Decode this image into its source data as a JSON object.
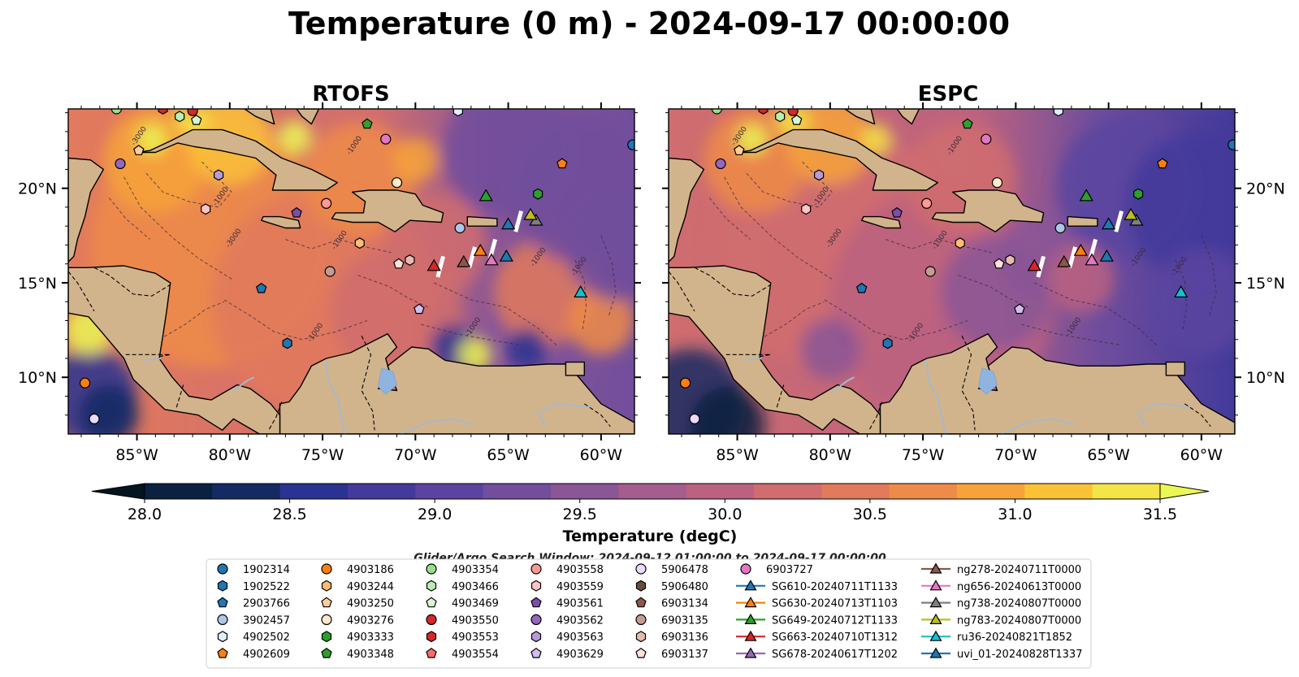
{
  "figure": {
    "title": "Temperature (0 m) - 2024-09-17 00:00:00",
    "search_window": "Glider/Argo Search Window: 2024-09-12 01:00:00 to 2024-09-17 00:00:00"
  },
  "colors": {
    "land": "#d2b48c",
    "border_line": "#000000",
    "river": "#a8b8c8",
    "lake": "#8fb4e0"
  },
  "chart_data": [
    {
      "type": "heatmap",
      "panel": "left",
      "title": "RTOFS",
      "x_ticks": [
        "85°W",
        "80°W",
        "75°W",
        "70°W",
        "65°W",
        "60°W"
      ],
      "x_tick_values": [
        -85,
        -80,
        -75,
        -70,
        -65,
        -60
      ],
      "y_ticks": [
        "20°N",
        "15°N",
        "10°N"
      ],
      "y_tick_values": [
        20,
        15,
        10
      ],
      "xlim": [
        -88.7,
        -58.2
      ],
      "ylim": [
        7.0,
        24.2
      ],
      "bathymetry_contour_labels": [
        "-1000",
        "-3000"
      ],
      "value_description": "Sea surface temperature (degC); ~30.0–31.0 in the western/central Caribbean and Gulf, ~29.0–29.5 east of 68°W"
    },
    {
      "type": "heatmap",
      "panel": "right",
      "title": "ESPC",
      "x_ticks": [
        "85°W",
        "80°W",
        "75°W",
        "70°W",
        "65°W",
        "60°W"
      ],
      "x_tick_values": [
        -85,
        -80,
        -75,
        -70,
        -65,
        -60
      ],
      "y_ticks": [
        "20°N",
        "15°N",
        "10°N"
      ],
      "y_tick_values": [
        20,
        15,
        10
      ],
      "xlim": [
        -88.7,
        -58.2
      ],
      "ylim": [
        7.0,
        24.2
      ],
      "bathymetry_contour_labels": [
        "-1000",
        "-3000"
      ],
      "value_description": "Sea surface temperature (degC); generally cooler than RTOFS, ~29.5–30.5 in central Caribbean, ~28.7–29.2 east of 65°W"
    }
  ],
  "colorbar": {
    "label": "Temperature (degC)",
    "min": 28.0,
    "max": 31.5,
    "ticks": [
      "28.0",
      "28.5",
      "29.0",
      "29.5",
      "30.0",
      "30.5",
      "31.0",
      "31.5"
    ],
    "colors": [
      "#0b2140",
      "#142a63",
      "#2a3391",
      "#433a9b",
      "#5b44a0",
      "#724e9c",
      "#8a5696",
      "#a45d8c",
      "#bb6280",
      "#d06d6f",
      "#e27a5c",
      "#ef8b48",
      "#f7a33b",
      "#fbc238",
      "#f3e447"
    ],
    "extend_low": "#05151f",
    "extend_high": "#ebf754"
  },
  "legend": {
    "columns": [
      [
        {
          "label": "1902314",
          "marker": "circle",
          "color": "#1f77b4"
        },
        {
          "label": "1902522",
          "marker": "hexagon",
          "color": "#1f77b4"
        },
        {
          "label": "2903766",
          "marker": "pentagon",
          "color": "#1f77b4"
        },
        {
          "label": "3902457",
          "marker": "circle",
          "color": "#aec7e8"
        },
        {
          "label": "4902502",
          "marker": "hexagon",
          "color": "#dff0fb"
        },
        {
          "label": "4902609",
          "marker": "pentagon",
          "color": "#ff7f0e"
        }
      ],
      [
        {
          "label": "4903186",
          "marker": "circle",
          "color": "#ff7f0e"
        },
        {
          "label": "4903244",
          "marker": "hexagon",
          "color": "#ffbb78"
        },
        {
          "label": "4903250",
          "marker": "pentagon",
          "color": "#ffcc99"
        },
        {
          "label": "4903276",
          "marker": "circle",
          "color": "#ffe8cc"
        },
        {
          "label": "4903333",
          "marker": "hexagon",
          "color": "#2ca02c"
        },
        {
          "label": "4903348",
          "marker": "pentagon",
          "color": "#2ca02c"
        }
      ],
      [
        {
          "label": "4903354",
          "marker": "circle",
          "color": "#98df8a"
        },
        {
          "label": "4903466",
          "marker": "hexagon",
          "color": "#b8eeb0"
        },
        {
          "label": "4903469",
          "marker": "pentagon",
          "color": "#d8f7d0"
        },
        {
          "label": "4903550",
          "marker": "circle",
          "color": "#d62728"
        },
        {
          "label": "4903553",
          "marker": "hexagon",
          "color": "#d62728"
        },
        {
          "label": "4903554",
          "marker": "pentagon",
          "color": "#ff6b6b"
        }
      ],
      [
        {
          "label": "4903558",
          "marker": "circle",
          "color": "#ff9896"
        },
        {
          "label": "4903559",
          "marker": "hexagon",
          "color": "#ffc4c2"
        },
        {
          "label": "4903561",
          "marker": "pentagon",
          "color": "#7b4fa8"
        },
        {
          "label": "4903562",
          "marker": "circle",
          "color": "#9467bd"
        },
        {
          "label": "4903563",
          "marker": "hexagon",
          "color": "#b89ad8"
        },
        {
          "label": "4903629",
          "marker": "pentagon",
          "color": "#d2bdf0"
        }
      ],
      [
        {
          "label": "5906478",
          "marker": "circle",
          "color": "#ecd9fb"
        },
        {
          "label": "5906480",
          "marker": "hexagon",
          "color": "#6b4c3b"
        },
        {
          "label": "6903134",
          "marker": "pentagon",
          "color": "#8c564b"
        },
        {
          "label": "6903135",
          "marker": "circle",
          "color": "#c49c94"
        },
        {
          "label": "6903136",
          "marker": "hexagon",
          "color": "#e8bbb2"
        },
        {
          "label": "6903137",
          "marker": "pentagon",
          "color": "#ffe0d8"
        }
      ],
      [
        {
          "label": "6903727",
          "marker": "circle",
          "color": "#e377c2"
        },
        {
          "label": "SG610-20240711T1133",
          "marker": "triangle",
          "color": "#1f77b4"
        },
        {
          "label": "SG630-20240713T1103",
          "marker": "triangle",
          "color": "#ff7f0e"
        },
        {
          "label": "SG649-20240712T1133",
          "marker": "triangle",
          "color": "#2ca02c"
        },
        {
          "label": "SG663-20240710T1312",
          "marker": "triangle",
          "color": "#d62728"
        },
        {
          "label": "SG678-20240617T1202",
          "marker": "triangle",
          "color": "#9467bd"
        }
      ],
      [
        {
          "label": "ng278-20240711T0000",
          "marker": "triangle",
          "color": "#8c564b"
        },
        {
          "label": "ng656-20240613T0000",
          "marker": "triangle",
          "color": "#e377c2"
        },
        {
          "label": "ng738-20240807T0000",
          "marker": "triangle",
          "color": "#7f7f7f"
        },
        {
          "label": "ng783-20240807T0000",
          "marker": "triangle",
          "color": "#bcbd22"
        },
        {
          "label": "ru36-20240821T1852",
          "marker": "triangle",
          "color": "#17becf"
        },
        {
          "label": "uvi_01-20240828T1337",
          "marker": "triangle",
          "color": "#1f77b4"
        }
      ]
    ]
  },
  "stations": [
    {
      "label": "1902314",
      "lon": -58.3,
      "lat": 22.3
    },
    {
      "label": "4903186",
      "lon": -87.8,
      "lat": 9.7
    },
    {
      "label": "2903766",
      "lon": -78.3,
      "lat": 14.7
    },
    {
      "label": "1902522",
      "lon": -76.9,
      "lat": 11.8
    },
    {
      "label": "3902457",
      "lon": -67.6,
      "lat": 17.9
    },
    {
      "label": "4902502",
      "lon": -67.7,
      "lat": 24.1
    },
    {
      "label": "4902609",
      "lon": -62.1,
      "lat": 21.3
    },
    {
      "label": "4903244",
      "lon": -73.0,
      "lat": 17.1
    },
    {
      "label": "4903250",
      "lon": -84.9,
      "lat": 22.0
    },
    {
      "label": "4903276",
      "lon": -71.0,
      "lat": 20.3
    },
    {
      "label": "4903333",
      "lon": -63.4,
      "lat": 19.7
    },
    {
      "label": "4903348",
      "lon": -72.6,
      "lat": 23.4
    },
    {
      "label": "4903354",
      "lon": -86.1,
      "lat": 24.2
    },
    {
      "label": "4903466",
      "lon": -82.7,
      "lat": 23.8
    },
    {
      "label": "4903469",
      "lon": -81.8,
      "lat": 23.6
    },
    {
      "label": "4903550",
      "lon": -82.0,
      "lat": 24.1
    },
    {
      "label": "4903553",
      "lon": -83.6,
      "lat": 24.2
    },
    {
      "label": "4903558",
      "lon": -74.8,
      "lat": 19.2
    },
    {
      "label": "4903559",
      "lon": -81.3,
      "lat": 18.9
    },
    {
      "label": "4903561",
      "lon": -76.4,
      "lat": 18.7
    },
    {
      "label": "4903562",
      "lon": -85.9,
      "lat": 21.3
    },
    {
      "label": "4903563",
      "lon": -80.6,
      "lat": 20.7
    },
    {
      "label": "4903629",
      "lon": -69.8,
      "lat": 13.6
    },
    {
      "label": "5906478",
      "lon": -87.3,
      "lat": 7.8
    },
    {
      "label": "6903135",
      "lon": -74.6,
      "lat": 15.6
    },
    {
      "label": "6903136",
      "lon": -70.3,
      "lat": 16.2
    },
    {
      "label": "6903137",
      "lon": -70.9,
      "lat": 16.0
    },
    {
      "label": "6903727",
      "lon": -71.6,
      "lat": 22.6
    }
  ],
  "gliders": [
    {
      "label": "SG610-20240711T1133",
      "lon": -65.0,
      "lat": 18.1
    },
    {
      "label": "SG630-20240713T1103",
      "lon": -66.5,
      "lat": 16.7
    },
    {
      "label": "SG649-20240712T1133",
      "lon": -66.2,
      "lat": 19.6
    },
    {
      "label": "SG663-20240710T1312",
      "lon": -69.0,
      "lat": 15.9
    },
    {
      "label": "ng278-20240711T0000",
      "lon": -67.4,
      "lat": 16.1
    },
    {
      "label": "ng656-20240613T0000",
      "lon": -65.9,
      "lat": 16.2
    },
    {
      "label": "ng738-20240807T0000",
      "lon": -63.5,
      "lat": 18.3
    },
    {
      "label": "ng783-20240807T0000",
      "lon": -63.8,
      "lat": 18.6
    },
    {
      "label": "ru36-20240821T1852",
      "lon": -61.1,
      "lat": 14.5
    },
    {
      "label": "uvi_01-20240828T1337",
      "lon": -65.1,
      "lat": 16.4
    }
  ]
}
